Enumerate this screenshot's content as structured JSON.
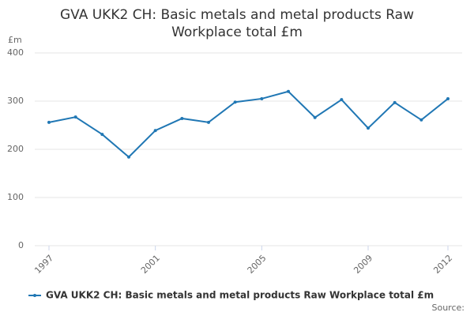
{
  "chart_data": {
    "type": "line",
    "title": "GVA UKK2 CH: Basic metals and metal products Raw Workplace total £m",
    "y_label": "£m",
    "source": "Source:",
    "x": [
      1997,
      1998,
      1999,
      2000,
      2001,
      2002,
      2003,
      2004,
      2005,
      2006,
      2007,
      2008,
      2009,
      2010,
      2011,
      2012
    ],
    "series": [
      {
        "name": "GVA UKK2 CH: Basic metals and metal products Raw Workplace total £m",
        "color": "#2077b4",
        "values": [
          256,
          267,
          231,
          184,
          239,
          264,
          256,
          298,
          305,
          320,
          266,
          303,
          244,
          297,
          261,
          305
        ]
      }
    ],
    "xlim": [
      1997,
      2012
    ],
    "xticks": [
      1997,
      2001,
      2005,
      2009,
      2012
    ],
    "ylim": [
      0,
      400
    ],
    "yticks": [
      0,
      100,
      200,
      300,
      400
    ],
    "grid": true
  }
}
